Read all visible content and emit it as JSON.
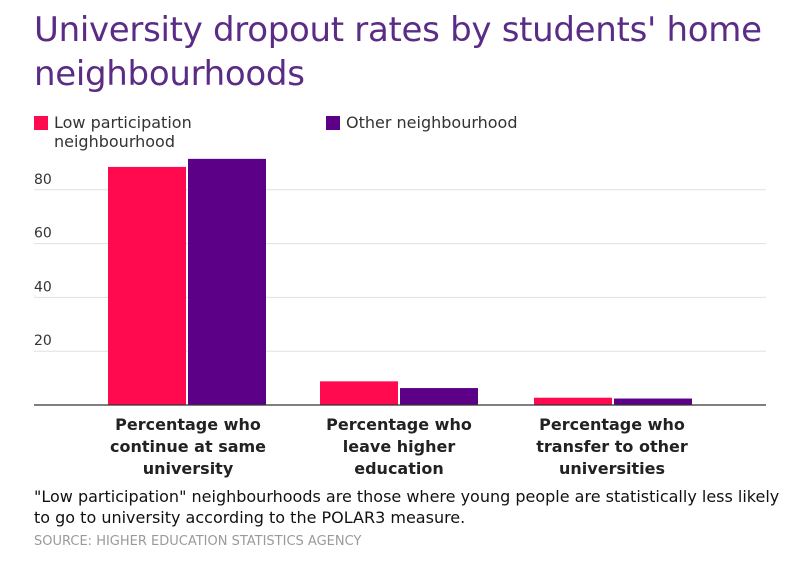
{
  "chart_data": {
    "type": "bar",
    "title": "University dropout rates by students' home neighbourhoods",
    "categories": [
      "Percentage who continue at same university",
      "Percentage who leave higher education",
      "Percentage who transfer to other universities"
    ],
    "series": [
      {
        "name": "Low participation neighbourhood",
        "values": [
          88.5,
          8.8,
          2.7
        ],
        "color": "#ff0a4e"
      },
      {
        "name": "Other neighbourhood",
        "values": [
          91.5,
          6.3,
          2.4
        ],
        "color": "#5c0087"
      }
    ],
    "yticks": [
      "20",
      "40",
      "60",
      "80"
    ],
    "ylim": [
      0,
      100
    ],
    "grid": true,
    "legend": "top-left",
    "xlabel": "",
    "ylabel": ""
  },
  "footnote": "\"Low participation\" neighbourhoods are those where young people are statistically less likely to go to university according to the POLAR3 measure.",
  "source": "SOURCE: HIGHER EDUCATION STATISTICS AGENCY"
}
